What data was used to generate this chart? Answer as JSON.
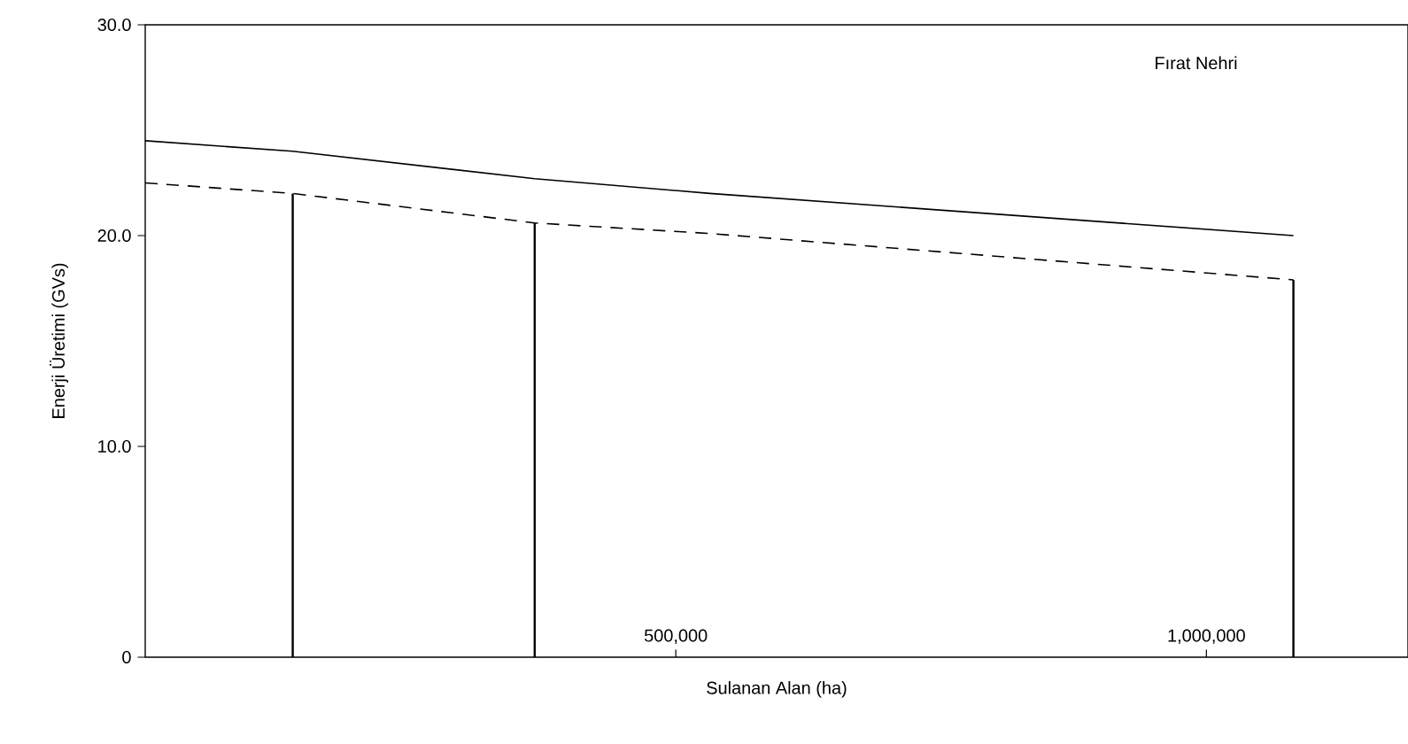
{
  "chart_data": {
    "type": "line",
    "xlabel": "Sulanan Alan (ha)",
    "ylabel": "Enerji Üretimi (GVs)",
    "annotations": [
      "Fırat Nehri"
    ],
    "xlim": [
      0,
      1190000
    ],
    "ylim": [
      0,
      30
    ],
    "xticks": [
      {
        "value": 500000,
        "label": "500,000"
      },
      {
        "value": 1000000,
        "label": "1,000,000"
      }
    ],
    "yticks": [
      0,
      {
        "value": 10,
        "label": "10.0"
      },
      {
        "value": 20,
        "label": "20.0"
      },
      {
        "value": 30,
        "label": "30.0"
      }
    ],
    "series": [
      {
        "color": "#000000",
        "line_style": "solid",
        "x": [
          0,
          139000,
          367000,
          532000,
          1082000
        ],
        "values": [
          24.5,
          24.0,
          22.7,
          22.0,
          20.0
        ]
      },
      {
        "color": "#000000",
        "line_style": "dashed",
        "x": [
          0,
          139000,
          367000,
          532000,
          1082000
        ],
        "values": [
          22.5,
          22.0,
          20.6,
          20.1,
          17.9
        ]
      },
      {
        "type": "bar",
        "color": "#000000",
        "x": [
          139000,
          367000,
          1082000
        ],
        "values": [
          22.0,
          20.6,
          17.9
        ]
      }
    ]
  }
}
